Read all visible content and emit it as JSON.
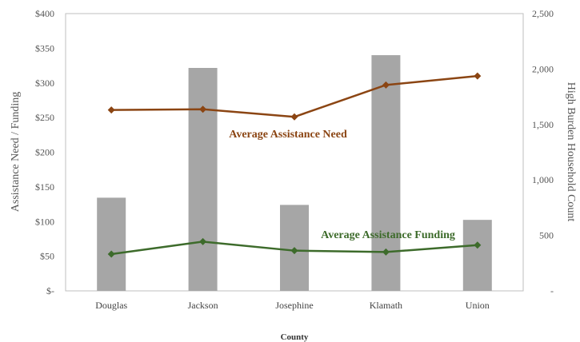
{
  "chart_data": {
    "type": "bar",
    "categories": [
      "Douglas",
      "Jackson",
      "Josephine",
      "Klamath",
      "Union"
    ],
    "xlabel": "County",
    "ylabel_left": "Assistance Need / Funding",
    "ylabel_right": "High Burden Household Count",
    "ylim_left": [
      0,
      400
    ],
    "ylim_right": [
      0,
      2500
    ],
    "yticks_left": [
      "$-",
      "$50",
      "$100",
      "$150",
      "$200",
      "$250",
      "$300",
      "$350",
      "$400"
    ],
    "yticks_right": [
      "-",
      "500",
      "1,000",
      "1,500",
      "2,000",
      "2,500"
    ],
    "grid": false,
    "series": [
      {
        "type": "bar",
        "axis": "right",
        "color": "#a6a6a6",
        "values": [
          840,
          2010,
          775,
          2125,
          640
        ]
      },
      {
        "name": "Average Assistance Need",
        "type": "line",
        "axis": "left",
        "color": "#8b4513",
        "marker": "diamond",
        "values": [
          261,
          262,
          251,
          297,
          310
        ]
      },
      {
        "name": "Average Assistance Funding",
        "type": "line",
        "axis": "left",
        "color": "#3d6b2b",
        "marker": "diamond",
        "values": [
          53,
          71,
          58,
          56,
          66
        ]
      }
    ]
  }
}
